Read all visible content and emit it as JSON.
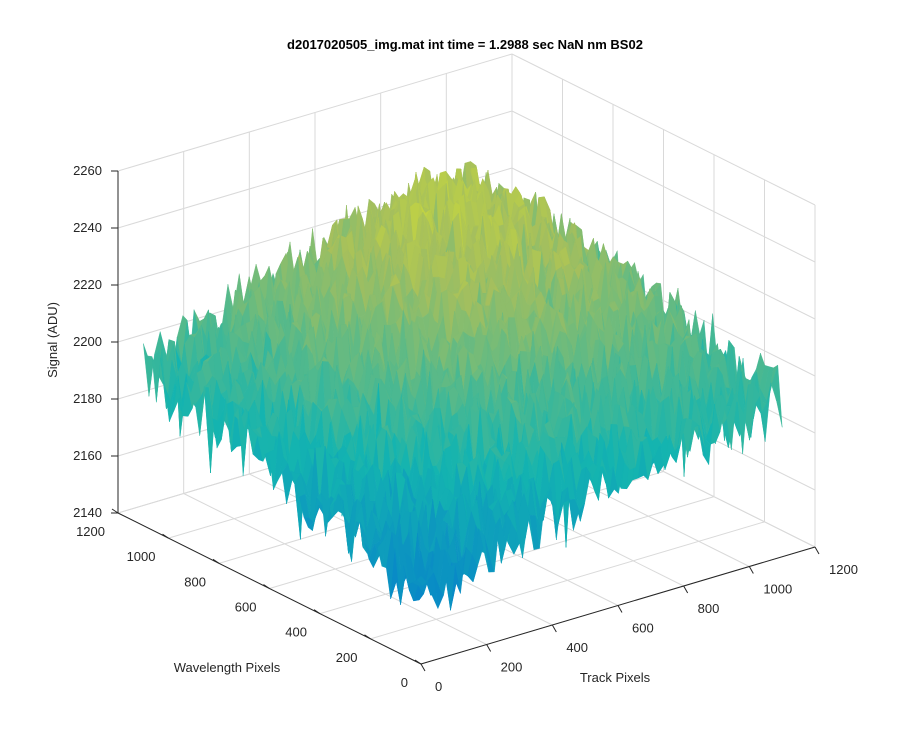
{
  "chart_data": {
    "type": "surface",
    "title": "d2017020505_img.mat int time = 1.2988 sec  NaN nm BS02",
    "xlabel": "Track Pixels",
    "ylabel": "Wavelength Pixels",
    "zlabel": "Signal (ADU)",
    "xlim": [
      0,
      1200
    ],
    "ylim": [
      0,
      1200
    ],
    "zlim": [
      2140,
      2260
    ],
    "x_ticks": [
      "0",
      "200",
      "400",
      "600",
      "800",
      "1000",
      "1200"
    ],
    "y_ticks": [
      "0",
      "200",
      "400",
      "600",
      "800",
      "1000",
      "1200"
    ],
    "z_ticks": [
      "2140",
      "2160",
      "2180",
      "2200",
      "2220",
      "2240",
      "2260"
    ],
    "grid": true,
    "colormap": "parula",
    "colors": {
      "low": "#0072bd",
      "mid": "#1fb5a6",
      "high": "#e8c93a",
      "grid": "#d9d9d9",
      "axis": "#262626"
    },
    "surface": {
      "x": [
        0,
        200,
        400,
        600,
        800,
        1000,
        1100
      ],
      "y": [
        0,
        200,
        400,
        600,
        800,
        1000,
        1100
      ],
      "z": [
        [
          2162,
          2172,
          2180,
          2186,
          2190,
          2192,
          2194
        ],
        [
          2170,
          2182,
          2192,
          2198,
          2202,
          2202,
          2200
        ],
        [
          2178,
          2192,
          2204,
          2212,
          2214,
          2210,
          2204
        ],
        [
          2184,
          2200,
          2214,
          2222,
          2224,
          2216,
          2206
        ],
        [
          2188,
          2204,
          2218,
          2228,
          2230,
          2222,
          2208
        ],
        [
          2190,
          2204,
          2216,
          2226,
          2230,
          2224,
          2210
        ],
        [
          2192,
          2202,
          2212,
          2220,
          2226,
          2222,
          2210
        ]
      ],
      "noise_amplitude": 12
    }
  }
}
